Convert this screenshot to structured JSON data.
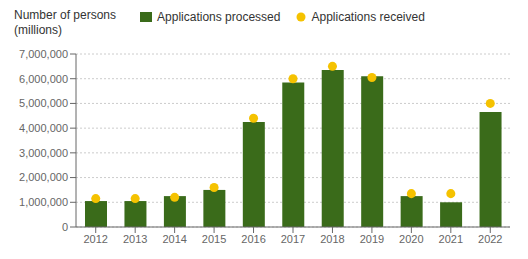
{
  "chart_data": {
    "type": "bar",
    "y_label": [
      "Number of persons",
      "(millions)"
    ],
    "categories": [
      "2012",
      "2013",
      "2014",
      "2015",
      "2016",
      "2017",
      "2018",
      "2019",
      "2020",
      "2021",
      "2022"
    ],
    "series": [
      {
        "name": "Applications processed",
        "type": "bar",
        "color": "#3a6b1a",
        "values": [
          1050000,
          1050000,
          1250000,
          1500000,
          4250000,
          5850000,
          6350000,
          6100000,
          1250000,
          1000000,
          4650000
        ]
      },
      {
        "name": "Applications received",
        "type": "scatter",
        "color": "#f5c200",
        "values": [
          1150000,
          1150000,
          1200000,
          1600000,
          4400000,
          6000000,
          6500000,
          6050000,
          1350000,
          1350000,
          5000000
        ]
      }
    ],
    "ylim": [
      0,
      7000000
    ],
    "yticks": [
      0,
      {
        "value": 1000000,
        "label": "1,000,000"
      },
      {
        "value": 2000000,
        "label": "2,000,000"
      },
      {
        "value": 3000000,
        "label": "3,000,000"
      },
      {
        "value": 4000000,
        "label": "4,000,000"
      },
      {
        "value": 5000000,
        "label": "5,000,000"
      },
      {
        "value": 6000000,
        "label": "6,000,000"
      },
      {
        "value": 7000000,
        "label": "7,000,000"
      }
    ],
    "grid": true,
    "legend": "top"
  }
}
